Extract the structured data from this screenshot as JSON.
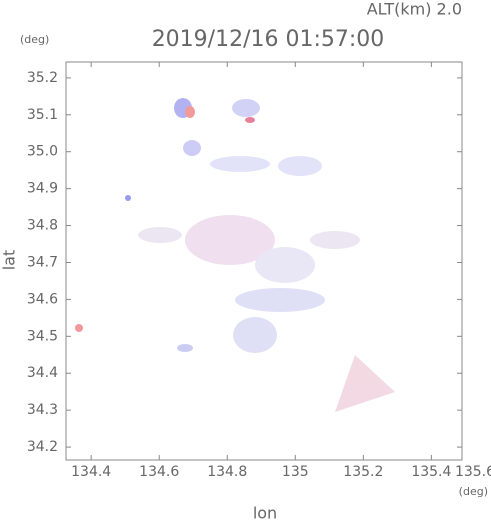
{
  "chart_data": {
    "type": "field",
    "title": "2019/12/16 01:57:00",
    "altitude_label": "ALT(km) 2.0",
    "x_unit": "(deg)",
    "y_unit": "(deg)",
    "xlabel": "lon",
    "ylabel": "lat",
    "xlim": [
      134.326,
      135.49
    ],
    "ylim": [
      34.165,
      35.243
    ],
    "xticks": [
      134.4,
      134.6,
      134.8,
      135.0,
      135.2,
      135.4,
      135.6
    ],
    "yticks": [
      34.2,
      34.3,
      34.4,
      34.5,
      34.6,
      34.7,
      34.8,
      34.9,
      {
        "value": 35.0,
        "label": "35.0"
      },
      35.1,
      35.2
    ]
  }
}
